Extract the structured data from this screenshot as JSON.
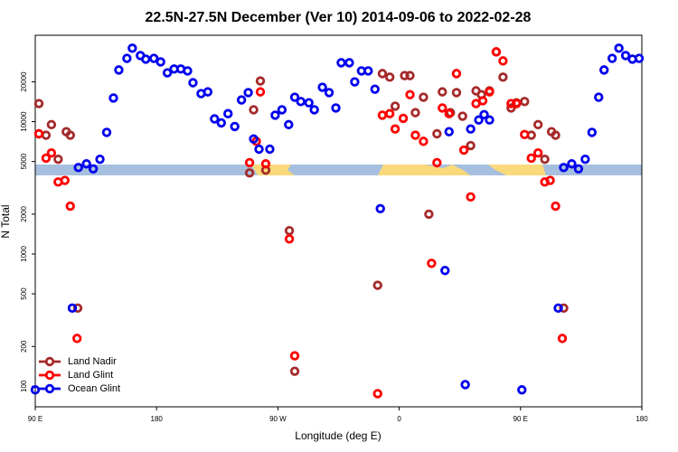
{
  "chart_data": {
    "type": "scatter",
    "title": "22.5N-27.5N December (Ver 10)   2014-09-06 to 2022-02-28",
    "x_label": "Longitude (deg E)",
    "y_label": "N Total",
    "xlim": [
      90,
      540
    ],
    "ylim": [
      70,
      45000
    ],
    "ylog": true,
    "legend": "lower left",
    "xticks": [
      {
        "value": 90,
        "label": "90 E"
      },
      180,
      {
        "value": 270,
        "label": "90 W"
      },
      {
        "value": 360,
        "label": "0"
      },
      {
        "value": 450,
        "label": "90 E"
      },
      {
        "value": 540,
        "label": "180"
      }
    ],
    "yticks": [
      100,
      200,
      500,
      1000,
      2000,
      5000,
      10000,
      20000
    ],
    "series": [
      {
        "name": "Land Nadir",
        "color": "#a52a2a",
        "x": [
          92.7,
          92.7,
          98,
          102,
          107,
          113,
          116,
          121.5,
          249,
          252,
          257,
          261,
          278.5,
          282.5,
          344,
          347.5,
          353,
          357,
          364,
          368,
          372,
          378,
          382,
          388,
          392,
          398,
          402.5,
          407,
          413,
          417,
          421,
          427,
          432,
          437,
          443,
          447,
          453,
          458,
          463,
          468,
          473,
          476,
          482
        ],
        "values": [
          13700,
          8100,
          7900,
          9500,
          5200,
          8400,
          7900,
          390,
          4100,
          12300,
          20300,
          4300,
          1500,
          130,
          580,
          23100,
          21700,
          13100,
          22300,
          22300,
          11700,
          15300,
          2000,
          8100,
          16800,
          11700,
          16600,
          11000,
          6600,
          17100,
          16000,
          17100,
          33700,
          21700,
          12700,
          13900,
          14200,
          7900,
          9500,
          5200,
          8400,
          7900,
          390
        ]
      },
      {
        "name": "Land Glint",
        "color": "#ff0000",
        "x": [
          92.7,
          98,
          102,
          107,
          112,
          116,
          121,
          249,
          254,
          257,
          261,
          278.5,
          282.5,
          344,
          347.5,
          353,
          357,
          363,
          368,
          372,
          378,
          384,
          388,
          392,
          397,
          402.5,
          408,
          413,
          417,
          422,
          427,
          432,
          437,
          443,
          447,
          453,
          458,
          463,
          468,
          472,
          476,
          481
        ],
        "values": [
          8100,
          5300,
          5800,
          3500,
          3600,
          2300,
          230,
          4900,
          7100,
          16800,
          4800,
          1300,
          170,
          88,
          11200,
          11500,
          8800,
          10600,
          16000,
          7900,
          7100,
          850,
          4900,
          12700,
          11500,
          23100,
          6100,
          2700,
          13700,
          14400,
          16800,
          33700,
          28800,
          13700,
          13700,
          8000,
          5300,
          5800,
          3500,
          3600,
          2300,
          230
        ]
      },
      {
        "name": "Ocean Glint",
        "color": "#0000ee",
        "x": [
          90,
          117.5,
          122,
          128,
          133,
          138,
          143,
          148,
          152,
          158,
          162,
          168,
          172,
          178,
          183,
          188,
          193,
          198,
          203,
          207,
          213,
          218,
          223,
          228,
          233,
          238,
          243,
          248,
          252,
          256,
          264,
          268,
          273,
          278,
          282.5,
          287,
          293,
          297,
          303,
          308,
          313,
          317,
          323,
          327,
          332,
          337,
          342,
          346,
          394,
          397,
          409,
          413,
          419,
          423,
          427,
          451,
          478,
          482,
          488,
          493,
          498,
          503,
          508,
          512,
          518,
          523,
          528,
          533,
          538
        ],
        "values": [
          94,
          390,
          4500,
          4800,
          4400,
          5200,
          8300,
          15100,
          24600,
          30100,
          35900,
          31600,
          29700,
          30100,
          28300,
          23400,
          25000,
          25000,
          24200,
          19700,
          16300,
          16800,
          10500,
          9800,
          11500,
          9200,
          14600,
          16600,
          7400,
          6200,
          6200,
          11200,
          12300,
          9500,
          15300,
          14200,
          13900,
          12300,
          18200,
          16600,
          12700,
          27900,
          27900,
          20000,
          24200,
          24200,
          17600,
          2200,
          750,
          8400,
          103,
          8800,
          10300,
          11300,
          10300,
          94,
          390,
          4500,
          4800,
          4400,
          5200,
          8300,
          15300,
          24600,
          30100,
          35900,
          31600,
          29700,
          30100
        ]
      }
    ]
  }
}
